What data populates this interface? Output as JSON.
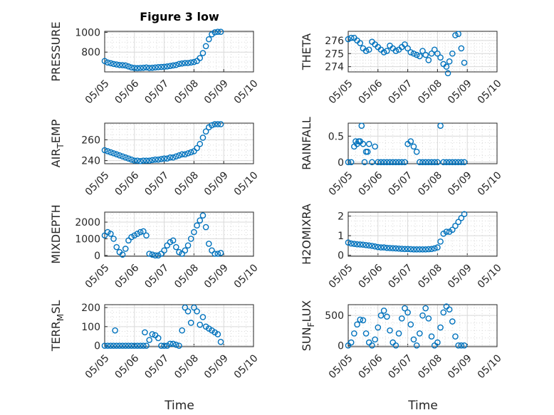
{
  "figure": {
    "title": "Figure 3 low",
    "xlabel": "Time"
  },
  "chart_data": [
    {
      "type": "scatter",
      "ylabel": "PRESSURE",
      "ylim": [
        600,
        1010
      ],
      "yticks": [
        800,
        1000
      ],
      "xlim": [
        0,
        5
      ],
      "xticks": [
        0,
        1,
        2,
        3,
        4,
        5
      ],
      "xticklabels": [
        "05/05",
        "05/06",
        "05/07",
        "05/08",
        "05/09",
        "05/10"
      ],
      "x": [
        0,
        0.1,
        0.2,
        0.3,
        0.4,
        0.5,
        0.6,
        0.7,
        0.8,
        0.9,
        1,
        1.1,
        1.2,
        1.3,
        1.4,
        1.5,
        1.6,
        1.7,
        1.8,
        1.9,
        2,
        2.1,
        2.2,
        2.3,
        2.4,
        2.5,
        2.6,
        2.7,
        2.8,
        2.9,
        3,
        3.1,
        3.2,
        3.3,
        3.4,
        3.5,
        3.6,
        3.7,
        3.8,
        3.9
      ],
      "y": [
        710,
        695,
        688,
        680,
        675,
        670,
        668,
        665,
        655,
        645,
        640,
        638,
        640,
        642,
        645,
        640,
        642,
        645,
        648,
        650,
        652,
        655,
        660,
        665,
        670,
        680,
        685,
        690,
        690,
        695,
        700,
        710,
        740,
        790,
        860,
        930,
        980,
        1000,
        1005,
        1005
      ]
    },
    {
      "type": "scatter",
      "ylabel": "THETA",
      "ylim": [
        273.6,
        276.7
      ],
      "yticks": [
        274,
        275,
        276
      ],
      "xlim": [
        0,
        5
      ],
      "xticks": [
        0,
        1,
        2,
        3,
        4,
        5
      ],
      "xticklabels": [
        "05/05",
        "05/06",
        "05/07",
        "05/08",
        "05/09",
        "05/10"
      ],
      "x": [
        0,
        0.1,
        0.2,
        0.3,
        0.4,
        0.5,
        0.6,
        0.7,
        0.8,
        0.9,
        1,
        1.1,
        1.2,
        1.3,
        1.4,
        1.5,
        1.6,
        1.7,
        1.8,
        1.9,
        2,
        2.1,
        2.2,
        2.3,
        2.4,
        2.5,
        2.6,
        2.7,
        2.8,
        2.9,
        3,
        3.1,
        3.2,
        3.3,
        3.35,
        3.4,
        3.5,
        3.6,
        3.7,
        3.8,
        3.9
      ],
      "y": [
        276.1,
        276.2,
        276.2,
        276.0,
        275.8,
        275.4,
        275.2,
        275.3,
        275.9,
        275.7,
        275.5,
        275.3,
        275.1,
        275.2,
        275.6,
        275.4,
        275.2,
        275.3,
        275.5,
        275.7,
        275.4,
        275.1,
        275.0,
        274.9,
        274.8,
        275.2,
        274.9,
        274.5,
        275.0,
        275.3,
        275.0,
        274.7,
        274.2,
        274.0,
        273.5,
        274.4,
        275.0,
        276.4,
        276.5,
        275.4,
        274.3
      ]
    },
    {
      "type": "scatter",
      "ylabel": "AIR_TEMP",
      "ylim": [
        237,
        276
      ],
      "yticks": [
        240,
        260
      ],
      "xlim": [
        0,
        5
      ],
      "xticks": [
        0,
        1,
        2,
        3,
        4,
        5
      ],
      "xticklabels": [
        "05/05",
        "05/06",
        "05/07",
        "05/08",
        "05/09",
        "05/10"
      ],
      "x": [
        0,
        0.1,
        0.2,
        0.3,
        0.4,
        0.5,
        0.6,
        0.7,
        0.8,
        0.9,
        1,
        1.1,
        1.2,
        1.3,
        1.4,
        1.5,
        1.6,
        1.7,
        1.8,
        1.9,
        2,
        2.1,
        2.2,
        2.3,
        2.4,
        2.5,
        2.6,
        2.7,
        2.8,
        2.9,
        3,
        3.1,
        3.2,
        3.3,
        3.4,
        3.5,
        3.6,
        3.7,
        3.8,
        3.9
      ],
      "y": [
        250,
        249,
        248,
        247,
        246,
        245,
        244,
        243,
        242,
        241,
        240,
        240,
        239.5,
        240,
        240,
        240,
        240.5,
        241,
        241,
        241.5,
        242,
        242,
        243,
        243,
        244,
        245,
        246,
        246,
        247,
        248,
        249,
        252,
        256,
        262,
        268,
        272,
        274,
        275,
        275,
        275
      ]
    },
    {
      "type": "scatter",
      "ylabel": "RAINFALL",
      "ylim": [
        -0.03,
        0.75
      ],
      "yticks": [
        0,
        0.5
      ],
      "xlim": [
        0,
        5
      ],
      "xticks": [
        0,
        1,
        2,
        3,
        4,
        5
      ],
      "xticklabels": [
        "05/05",
        "05/06",
        "05/07",
        "05/08",
        "05/09",
        "05/10"
      ],
      "x": [
        0,
        0.1,
        0.2,
        0.25,
        0.3,
        0.35,
        0.4,
        0.45,
        0.5,
        0.55,
        0.6,
        0.65,
        0.7,
        0.8,
        0.9,
        1.0,
        1.1,
        1.2,
        1.3,
        1.4,
        1.5,
        1.6,
        1.7,
        1.8,
        1.9,
        2.0,
        2.1,
        2.2,
        2.3,
        2.4,
        2.5,
        2.6,
        2.7,
        2.8,
        2.9,
        3.0,
        3.1,
        3.2,
        3.3,
        3.4,
        3.5,
        3.6,
        3.7,
        3.8,
        3.9
      ],
      "y": [
        0,
        0,
        0.3,
        0.4,
        0.35,
        0.4,
        0.4,
        0.7,
        0.35,
        0,
        0.2,
        0.2,
        0.35,
        0,
        0.3,
        0,
        0,
        0,
        0,
        0,
        0,
        0,
        0,
        0,
        0,
        0.35,
        0.4,
        0.3,
        0.2,
        0,
        0,
        0,
        0,
        0,
        0,
        0,
        0.7,
        0,
        0,
        0,
        0,
        0,
        0,
        0,
        0
      ]
    },
    {
      "type": "scatter",
      "ylabel": "MIXDEPTH",
      "ylim": [
        -50,
        2600
      ],
      "yticks": [
        0,
        1000,
        2000
      ],
      "xlim": [
        0,
        5
      ],
      "xticks": [
        0,
        1,
        2,
        3,
        4,
        5
      ],
      "xticklabels": [
        "05/05",
        "05/06",
        "05/07",
        "05/08",
        "05/09",
        "05/10"
      ],
      "x": [
        0,
        0.1,
        0.2,
        0.3,
        0.4,
        0.5,
        0.6,
        0.7,
        0.8,
        0.9,
        1,
        1.1,
        1.2,
        1.3,
        1.4,
        1.5,
        1.6,
        1.7,
        1.8,
        1.9,
        2,
        2.1,
        2.2,
        2.3,
        2.4,
        2.5,
        2.6,
        2.7,
        2.8,
        2.9,
        3,
        3.1,
        3.2,
        3.3,
        3.4,
        3.5,
        3.6,
        3.7,
        3.8,
        3.9
      ],
      "y": [
        1200,
        1400,
        1300,
        1000,
        500,
        200,
        50,
        400,
        900,
        1100,
        1200,
        1300,
        1400,
        1450,
        1200,
        100,
        50,
        0,
        0,
        100,
        300,
        600,
        800,
        900,
        500,
        200,
        100,
        300,
        600,
        1000,
        1400,
        1800,
        2100,
        2400,
        1700,
        700,
        300,
        100,
        100,
        150
      ]
    },
    {
      "type": "scatter",
      "ylabel": "H2OMIXRA",
      "ylim": [
        -0.05,
        2.2
      ],
      "yticks": [
        0,
        1,
        2
      ],
      "xlim": [
        0,
        5
      ],
      "xticks": [
        0,
        1,
        2,
        3,
        4,
        5
      ],
      "xticklabels": [
        "05/05",
        "05/06",
        "05/07",
        "05/08",
        "05/09",
        "05/10"
      ],
      "x": [
        0,
        0.1,
        0.2,
        0.3,
        0.4,
        0.5,
        0.6,
        0.7,
        0.8,
        0.9,
        1,
        1.1,
        1.2,
        1.3,
        1.4,
        1.5,
        1.6,
        1.7,
        1.8,
        1.9,
        2,
        2.1,
        2.2,
        2.3,
        2.4,
        2.5,
        2.6,
        2.7,
        2.8,
        2.9,
        3,
        3.1,
        3.2,
        3.3,
        3.4,
        3.5,
        3.6,
        3.7,
        3.8,
        3.9
      ],
      "y": [
        0.65,
        0.6,
        0.58,
        0.56,
        0.55,
        0.54,
        0.52,
        0.5,
        0.48,
        0.45,
        0.42,
        0.4,
        0.4,
        0.38,
        0.37,
        0.36,
        0.35,
        0.34,
        0.33,
        0.32,
        0.32,
        0.31,
        0.3,
        0.3,
        0.3,
        0.3,
        0.3,
        0.31,
        0.32,
        0.35,
        0.4,
        0.7,
        1.1,
        1.2,
        1.2,
        1.3,
        1.5,
        1.7,
        1.9,
        2.1
      ]
    },
    {
      "type": "scatter",
      "ylabel": "TERR_MSL",
      "ylim": [
        -5,
        215
      ],
      "yticks": [
        0,
        100,
        200
      ],
      "xlim": [
        0,
        5
      ],
      "xticks": [
        0,
        1,
        2,
        3,
        4,
        5
      ],
      "xticklabels": [
        "05/05",
        "05/06",
        "05/07",
        "05/08",
        "05/09",
        "05/10"
      ],
      "x": [
        0,
        0.1,
        0.2,
        0.3,
        0.35,
        0.4,
        0.5,
        0.6,
        0.7,
        0.8,
        0.9,
        1.0,
        1.1,
        1.2,
        1.3,
        1.35,
        1.4,
        1.5,
        1.6,
        1.7,
        1.8,
        1.9,
        2.0,
        2.1,
        2.2,
        2.3,
        2.4,
        2.5,
        2.6,
        2.7,
        2.8,
        2.9,
        3.0,
        3.1,
        3.2,
        3.3,
        3.4,
        3.5,
        3.6,
        3.7,
        3.8,
        3.9
      ],
      "y": [
        0,
        0,
        0,
        0,
        80,
        0,
        0,
        0,
        0,
        0,
        0,
        0,
        0,
        0,
        0,
        70,
        0,
        30,
        60,
        55,
        40,
        0,
        0,
        0,
        10,
        10,
        5,
        0,
        80,
        200,
        180,
        120,
        200,
        180,
        110,
        150,
        100,
        90,
        80,
        70,
        60,
        20
      ]
    },
    {
      "type": "scatter",
      "ylabel": "SUN_FLUX",
      "ylim": [
        -20,
        680
      ],
      "yticks": [
        0,
        500
      ],
      "xlim": [
        0,
        5
      ],
      "xticks": [
        0,
        1,
        2,
        3,
        4,
        5
      ],
      "xticklabels": [
        "05/05",
        "05/06",
        "05/07",
        "05/08",
        "05/09",
        "05/10"
      ],
      "x": [
        0,
        0.1,
        0.2,
        0.3,
        0.4,
        0.5,
        0.6,
        0.7,
        0.8,
        0.9,
        1,
        1.1,
        1.2,
        1.3,
        1.4,
        1.5,
        1.6,
        1.7,
        1.8,
        1.9,
        2,
        2.1,
        2.2,
        2.3,
        2.4,
        2.5,
        2.6,
        2.7,
        2.8,
        2.9,
        3,
        3.1,
        3.2,
        3.3,
        3.4,
        3.5,
        3.6,
        3.7,
        3.8,
        3.9
      ],
      "y": [
        0,
        50,
        200,
        350,
        430,
        420,
        200,
        50,
        0,
        100,
        300,
        500,
        580,
        480,
        250,
        50,
        0,
        200,
        450,
        620,
        550,
        350,
        100,
        0,
        200,
        500,
        620,
        450,
        150,
        0,
        50,
        300,
        550,
        650,
        600,
        400,
        150,
        0,
        0,
        0
      ]
    }
  ]
}
